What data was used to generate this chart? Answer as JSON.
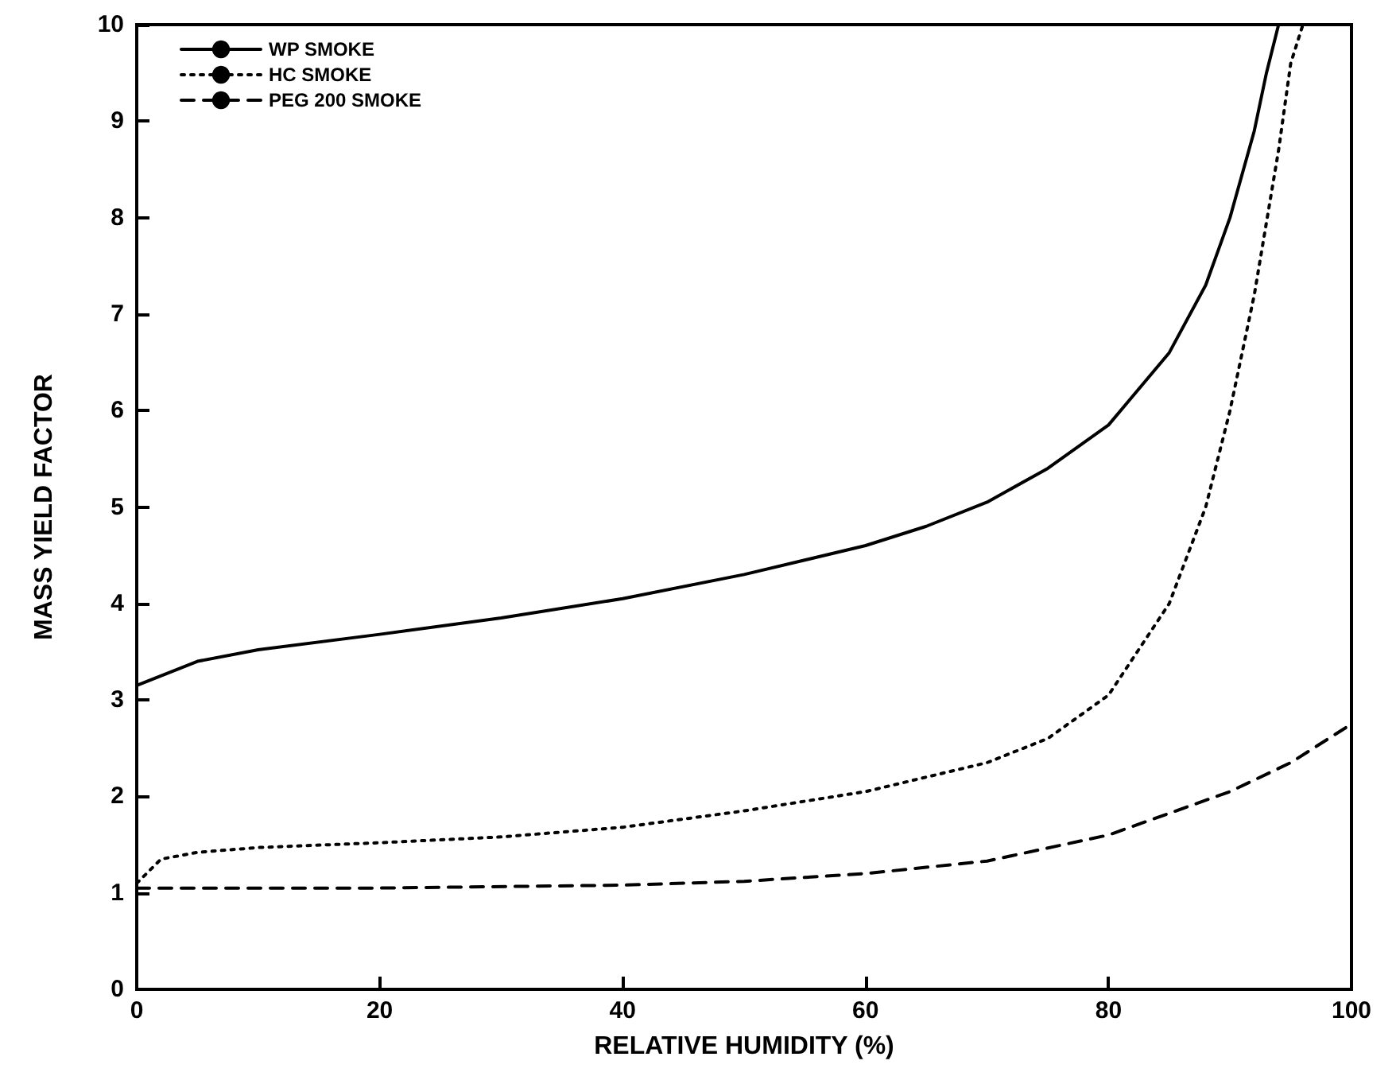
{
  "chart_data": {
    "type": "line",
    "xlabel": "RELATIVE HUMIDITY (%)",
    "ylabel": "MASS YIELD FACTOR",
    "xlim": [
      0,
      100
    ],
    "ylim": [
      0,
      10
    ],
    "xticks": [
      0,
      20,
      40,
      60,
      80,
      100
    ],
    "yticks": [
      0,
      1,
      2,
      3,
      4,
      5,
      6,
      7,
      8,
      9,
      10
    ],
    "grid": false,
    "legend": "top left",
    "marker": "none",
    "series": [
      {
        "name": "WP SMOKE",
        "color": "#000000",
        "line_style": "solid",
        "x": [
          0,
          5,
          10,
          20,
          30,
          40,
          50,
          60,
          65,
          70,
          75,
          80,
          85,
          88,
          90,
          92,
          93,
          94
        ],
        "values": [
          3.15,
          3.4,
          3.52,
          3.68,
          3.85,
          4.05,
          4.3,
          4.6,
          4.8,
          5.05,
          5.4,
          5.85,
          6.6,
          7.3,
          8.0,
          8.9,
          9.5,
          10
        ]
      },
      {
        "name": "HC SMOKE",
        "color": "#000000",
        "line_style": "dotted",
        "x": [
          0,
          2,
          5,
          10,
          20,
          30,
          40,
          50,
          60,
          70,
          75,
          80,
          85,
          88,
          90,
          92,
          94,
          95,
          96
        ],
        "values": [
          1.1,
          1.35,
          1.42,
          1.47,
          1.52,
          1.58,
          1.68,
          1.85,
          2.05,
          2.35,
          2.6,
          3.05,
          4.0,
          5.0,
          6.0,
          7.2,
          8.7,
          9.6,
          10
        ]
      },
      {
        "name": "PEG 200 SMOKE",
        "color": "#000000",
        "line_style": "dashed",
        "x": [
          0,
          20,
          40,
          50,
          60,
          70,
          80,
          90,
          95,
          100
        ],
        "values": [
          1.05,
          1.05,
          1.08,
          1.12,
          1.2,
          1.33,
          1.6,
          2.05,
          2.35,
          2.75
        ]
      }
    ]
  }
}
